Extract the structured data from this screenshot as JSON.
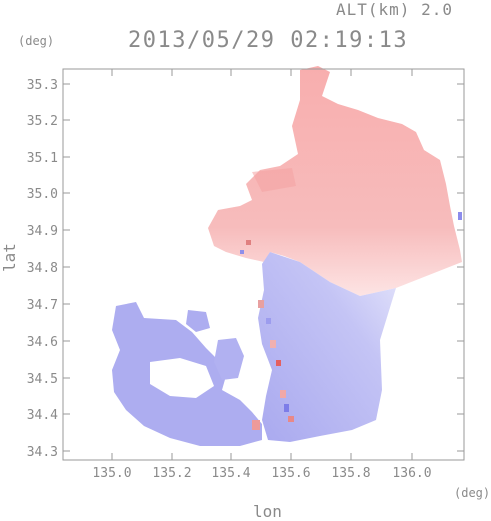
{
  "header": {
    "altitude_label": "ALT(km) 2.0",
    "timestamp": "2013/05/29 02:19:13"
  },
  "axes": {
    "y_unit": "(deg)",
    "x_unit": "(deg)",
    "y_label": "lat",
    "x_label": "lon",
    "y_ticks": [
      "35.3",
      "35.2",
      "35.1",
      "35.0",
      "34.9",
      "34.8",
      "34.7",
      "34.6",
      "34.5",
      "34.4",
      "34.3"
    ],
    "x_ticks": [
      "135.0",
      "135.2",
      "135.4",
      "135.6",
      "135.8",
      "136.0"
    ]
  },
  "colors": {
    "approaching": "#aaaaf2",
    "receding": "#f6b4b4",
    "neutral": "#ffffff",
    "frame": "#9a9a9a"
  }
}
